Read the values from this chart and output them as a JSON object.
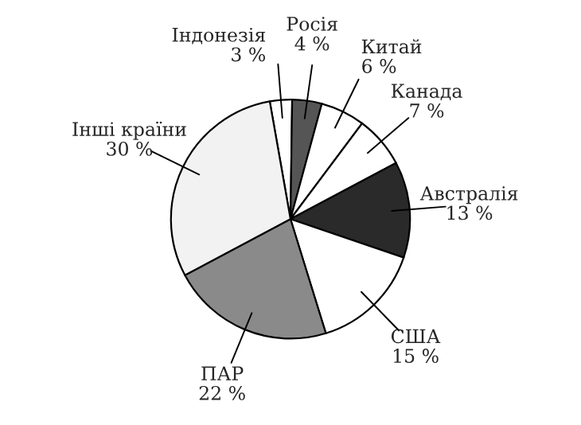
{
  "chart_data": {
    "type": "pie",
    "categories": [
      "Індонезія",
      "Росія",
      "Китай",
      "Канада",
      "Австралія",
      "США",
      "ПАР",
      "Інші країни"
    ],
    "values": [
      3,
      4,
      6,
      7,
      13,
      15,
      22,
      30
    ],
    "value_labels": [
      "3 %",
      "4 %",
      "6 %",
      "7 %",
      "13 %",
      "15 %",
      "22 %",
      "30 %"
    ],
    "colors": [
      "#ffffff",
      "#555555",
      "#ffffff",
      "#ffffff",
      "#2a2a2a",
      "#ffffff",
      "#8a8a8a",
      "#f2f2f2"
    ]
  }
}
